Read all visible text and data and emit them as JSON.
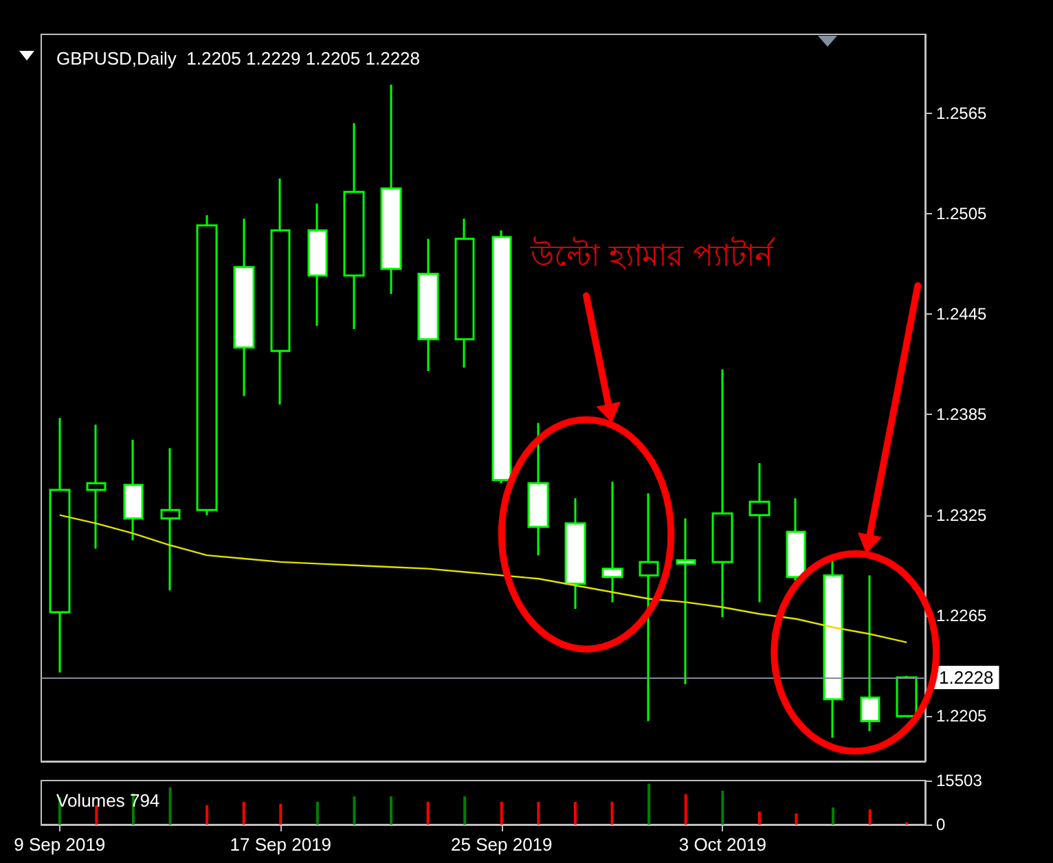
{
  "chart_data": [
    {
      "type": "candlestick",
      "title": "GBPUSD,Daily  1.2205 1.2229 1.2205 1.2228",
      "annotations": [
        "উল্টো হ্যামার প্যাটার্ন"
      ],
      "categories": [
        null,
        null,
        null,
        null,
        null,
        null,
        null,
        null,
        null,
        null,
        null,
        null,
        null,
        null,
        null,
        null,
        null,
        null,
        null,
        null,
        null,
        null,
        null,
        null
      ],
      "color": "#00ff00",
      "ohlc": [
        [
          1.2267,
          1.2383,
          1.2231,
          1.234
        ],
        [
          1.234,
          1.2379,
          1.2305,
          1.2344
        ],
        [
          1.2343,
          1.237,
          1.231,
          1.2323
        ],
        [
          1.2323,
          1.2365,
          1.228,
          1.2328
        ],
        [
          1.2328,
          1.2504,
          1.2325,
          1.2498
        ],
        [
          1.2473,
          1.2502,
          1.2396,
          1.2425
        ],
        [
          1.2423,
          1.2526,
          1.2391,
          1.2495
        ],
        [
          1.2495,
          1.2511,
          1.2438,
          1.2468
        ],
        [
          1.2468,
          1.2559,
          1.2436,
          1.2518
        ],
        [
          1.252,
          1.2582,
          1.2457,
          1.2472
        ],
        [
          1.2469,
          1.249,
          1.2411,
          1.243
        ],
        [
          1.243,
          1.2502,
          1.2413,
          1.249
        ],
        [
          1.2491,
          1.2495,
          1.2344,
          1.2346
        ],
        [
          1.2344,
          1.238,
          1.2301,
          1.2318
        ],
        [
          1.232,
          1.2335,
          1.2269,
          1.2284
        ],
        [
          1.2293,
          1.2345,
          1.2273,
          1.2288
        ],
        [
          1.2289,
          1.2338,
          1.2202,
          1.2297
        ],
        [
          1.2298,
          1.2323,
          1.2224,
          1.2296
        ],
        [
          1.2297,
          1.2412,
          1.2264,
          1.2326
        ],
        [
          1.2325,
          1.2356,
          1.2273,
          1.2333
        ],
        [
          1.2315,
          1.2335,
          1.2286,
          1.2288
        ],
        [
          1.2289,
          1.23,
          1.2192,
          1.2215
        ],
        [
          1.2216,
          1.2289,
          1.2196,
          1.2202
        ],
        [
          1.2205,
          1.2229,
          1.2205,
          1.2228
        ]
      ],
      "series": [
        {
          "type": "line",
          "color": "#e0e000",
          "values": [
            1.2325,
            1.232,
            1.2314,
            1.2307,
            1.2301,
            1.2299,
            1.2297,
            1.2296,
            1.2295,
            1.2294,
            1.2293,
            1.2291,
            1.2289,
            1.2287,
            1.2283,
            1.2279,
            1.2275,
            1.2273,
            1.227,
            1.2266,
            1.2263,
            1.2258,
            1.2254,
            1.2249
          ]
        }
      ],
      "marker": "none",
      "ylim": [
        1.2178,
        1.2612
      ],
      "yticks": [
        1.2205,
        1.2265,
        1.2325,
        1.2385,
        1.2445,
        1.2505,
        1.2565
      ],
      "ref_lines": [
        {
          "axis": "y",
          "value": 1.2228,
          "label": "1.2228",
          "color": "#7f8c99"
        }
      ],
      "tick_labels": "y"
    },
    {
      "type": "bar",
      "title": "Volumes 794",
      "categories": [
        "9 Sep 2019",
        null,
        null,
        null,
        null,
        null,
        "17 Sep 2019",
        null,
        null,
        null,
        null,
        null,
        "25 Sep 2019",
        null,
        null,
        null,
        null,
        null,
        "3 Oct 2019",
        null,
        null,
        null,
        null,
        null
      ],
      "values": [
        9700,
        6800,
        11000,
        13100,
        6800,
        8000,
        7300,
        8000,
        9900,
        9900,
        8000,
        9900,
        8000,
        8000,
        8000,
        8000,
        14400,
        10700,
        11900,
        4600,
        3900,
        6000,
        5400,
        794
      ],
      "colors": [
        "#008000",
        "#ff0000",
        "#008000",
        "#008000",
        "#ff0000",
        "#ff0000",
        "#ff0000",
        "#008000",
        "#008000",
        "#008000",
        "#ff0000",
        "#008000",
        "#ff0000",
        "#ff0000",
        "#ff0000",
        "#ff0000",
        "#008000",
        "#ff0000",
        "#008000",
        "#ff0000",
        "#ff0000",
        "#008000",
        "#ff0000",
        "#ff0000"
      ],
      "ylim": [
        0,
        15503
      ],
      "yticks": [
        0,
        15503
      ]
    }
  ]
}
